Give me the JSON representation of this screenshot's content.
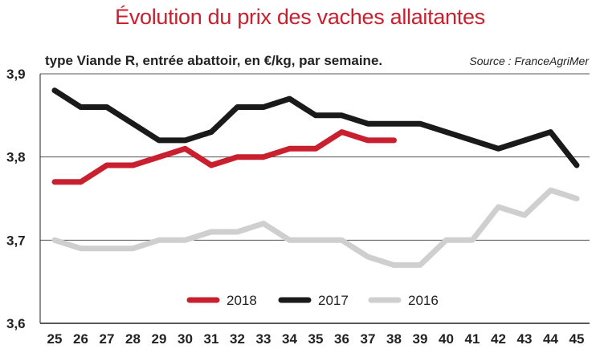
{
  "chart_data": {
    "type": "line",
    "title": "Évolution du prix des vaches allaitantes",
    "subtitle": "type Viande R, entrée abattoir, en €/kg, par semaine.",
    "source": "Source : FranceAgriMer",
    "x": [
      25,
      26,
      27,
      28,
      29,
      30,
      31,
      32,
      33,
      34,
      35,
      36,
      37,
      38,
      39,
      40,
      41,
      42,
      43,
      44,
      45
    ],
    "ylim": [
      3.6,
      3.9
    ],
    "yticks": [
      "3,6",
      "3,7",
      "3,8",
      "3,9"
    ],
    "grid": true,
    "legend_position": "bottom",
    "series": [
      {
        "name": "2018",
        "color": "#c8202e",
        "x": [
          25,
          26,
          27,
          28,
          29,
          30,
          31,
          32,
          33,
          34,
          35,
          36,
          37,
          38
        ],
        "values": [
          3.77,
          3.77,
          3.79,
          3.79,
          3.8,
          3.81,
          3.79,
          3.8,
          3.8,
          3.81,
          3.81,
          3.83,
          3.82,
          3.82
        ]
      },
      {
        "name": "2017",
        "color": "#1a1a1a",
        "x": [
          25,
          26,
          27,
          28,
          29,
          30,
          31,
          32,
          33,
          34,
          35,
          36,
          37,
          38,
          39,
          40,
          41,
          42,
          43,
          44,
          45
        ],
        "values": [
          3.88,
          3.86,
          3.86,
          3.84,
          3.82,
          3.82,
          3.83,
          3.86,
          3.86,
          3.87,
          3.85,
          3.85,
          3.84,
          3.84,
          3.84,
          3.83,
          3.82,
          3.81,
          3.82,
          3.83,
          3.79
        ]
      },
      {
        "name": "2016",
        "color": "#cfcfcf",
        "x": [
          25,
          26,
          27,
          28,
          29,
          30,
          31,
          32,
          33,
          34,
          35,
          36,
          37,
          38,
          39,
          40,
          41,
          42,
          43,
          44,
          45
        ],
        "values": [
          3.7,
          3.69,
          3.69,
          3.69,
          3.7,
          3.7,
          3.71,
          3.71,
          3.72,
          3.7,
          3.7,
          3.7,
          3.68,
          3.67,
          3.67,
          3.7,
          3.7,
          3.74,
          3.73,
          3.76,
          3.75
        ]
      }
    ]
  }
}
